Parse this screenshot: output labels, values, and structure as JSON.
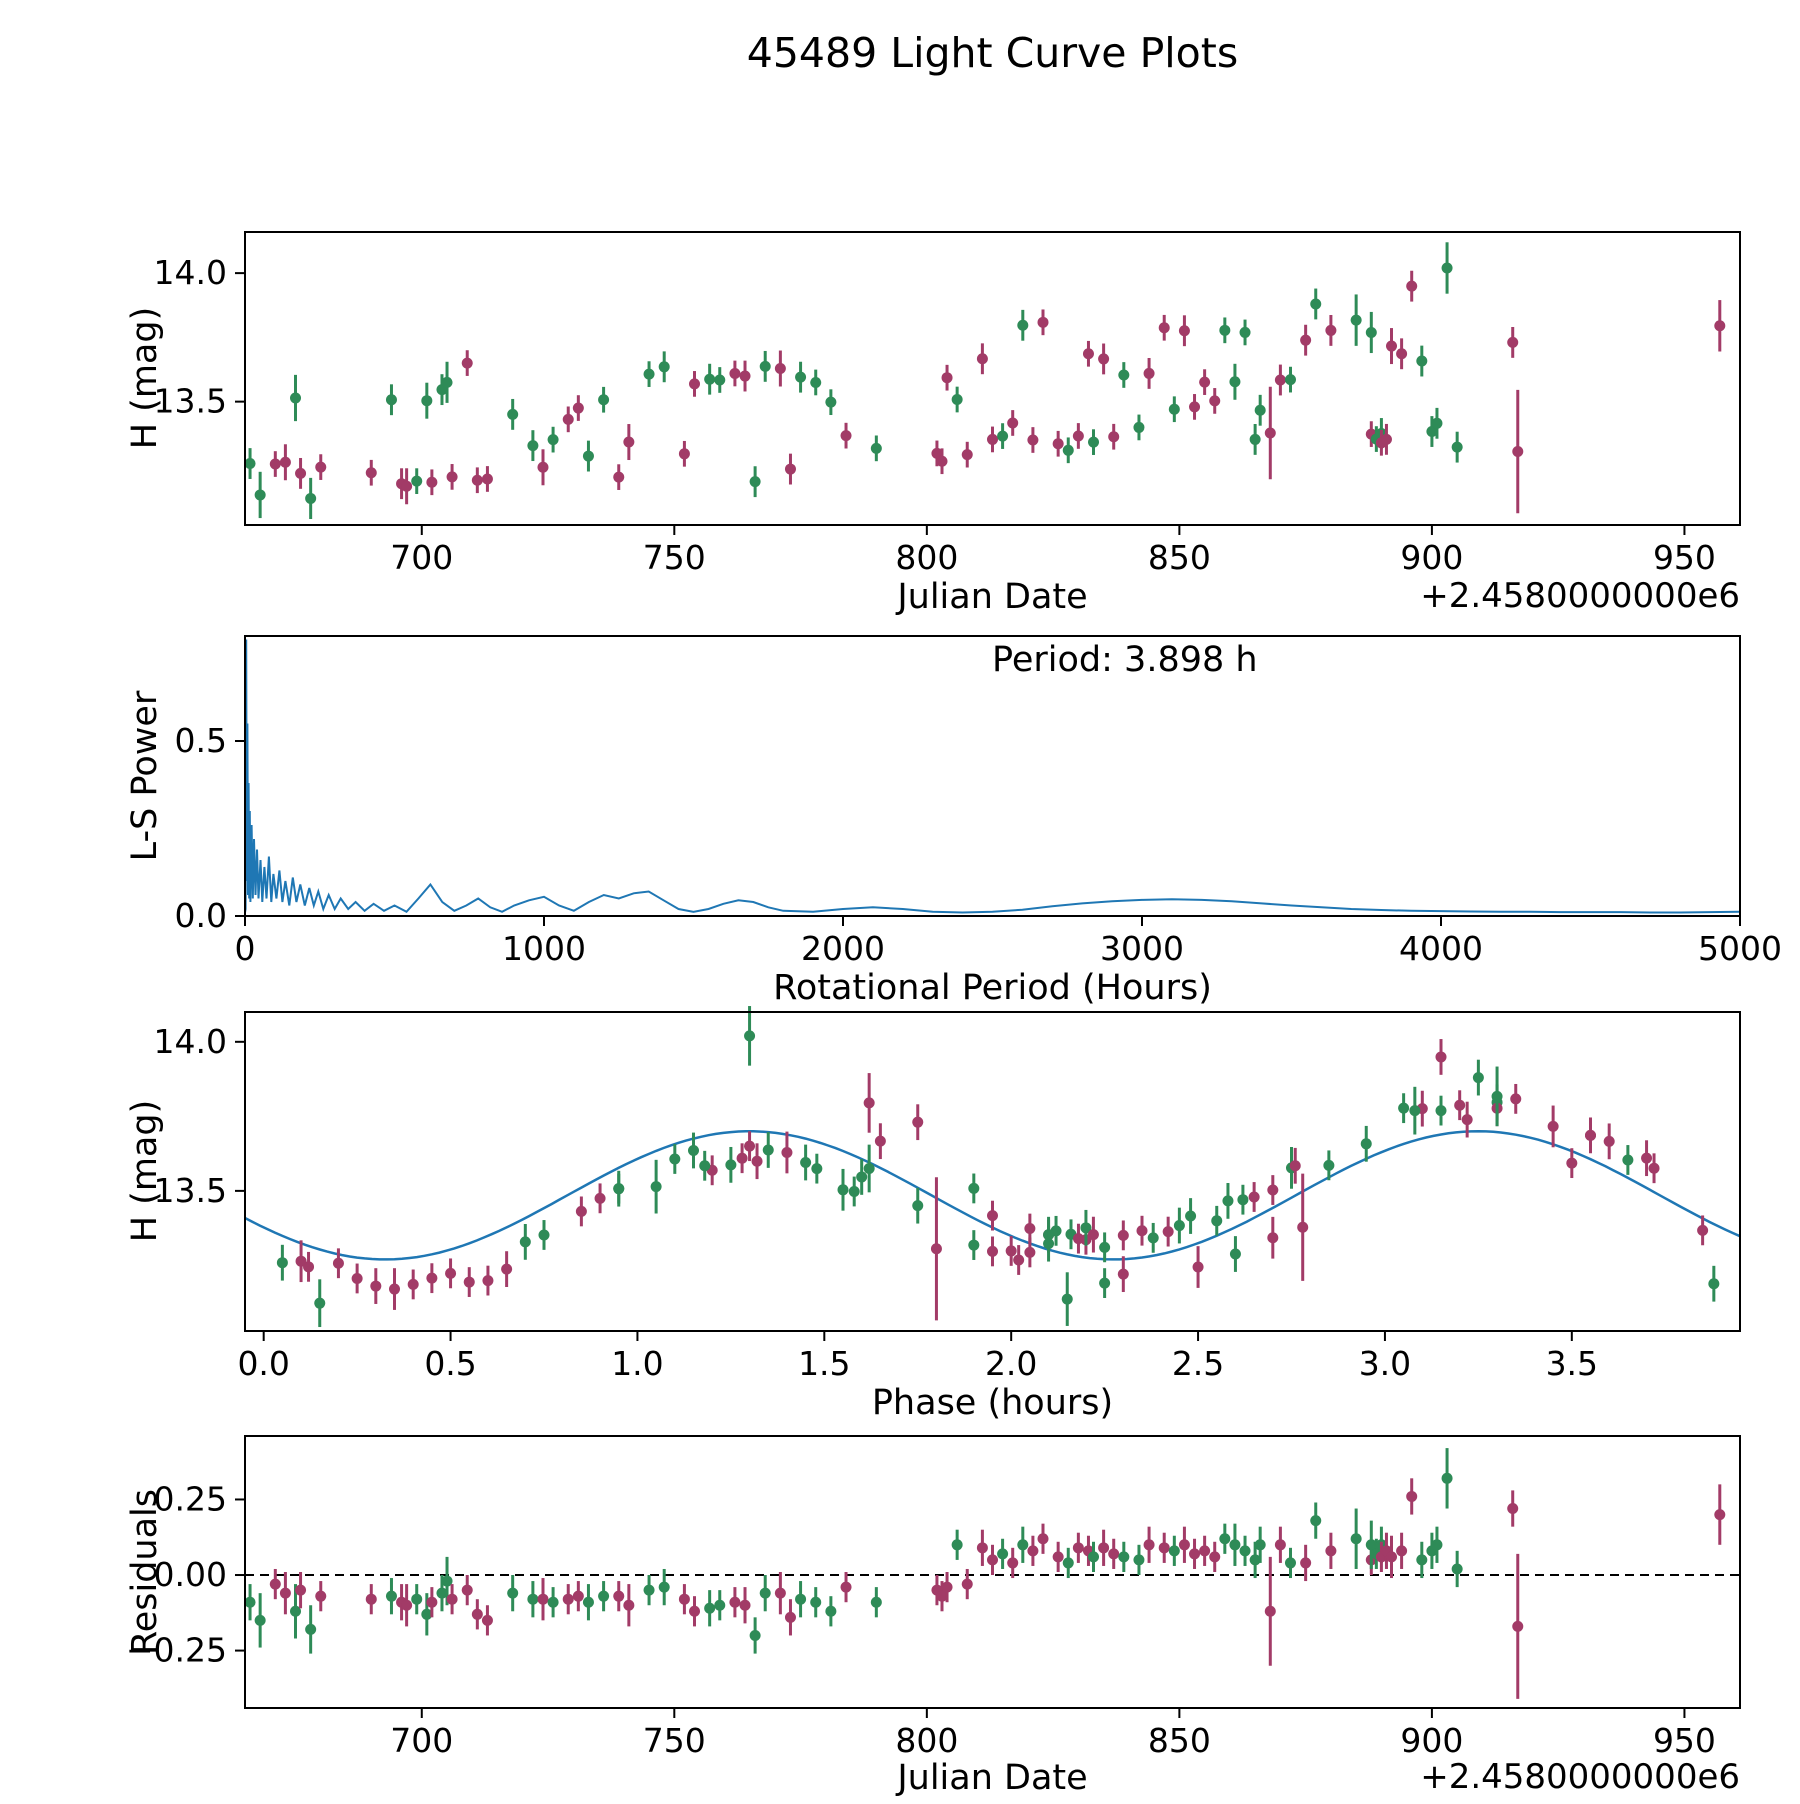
{
  "title": "45489 Light Curve Plots",
  "colors": {
    "green_series": "#2e8b57",
    "maroon_series": "#a23b67",
    "fit_line": "#1f77b4",
    "axis": "#000000",
    "background": "#ffffff"
  },
  "fit": {
    "period_hours": 3.898,
    "sine_period_hours": 1.949,
    "mean_mag": 13.485,
    "amplitude_mag": 0.215,
    "phase_of_minimum_hours": 0.325,
    "label": "Period: 3.898 h"
  },
  "observations_columns": [
    "jd_minus_2458000",
    "phase_hours",
    "residual_mag",
    "error_mag",
    "series"
  ],
  "observations": [
    [
      666,
      0.05,
      -0.09,
      0.06,
      "g"
    ],
    [
      668,
      2.15,
      -0.15,
      0.09,
      "g"
    ],
    [
      671,
      0.2,
      -0.03,
      0.05,
      "m"
    ],
    [
      673,
      0.1,
      -0.06,
      0.07,
      "m"
    ],
    [
      675,
      1.05,
      -0.12,
      0.09,
      "g"
    ],
    [
      676,
      2.3,
      -0.05,
      0.06,
      "m"
    ],
    [
      678,
      0.15,
      -0.18,
      0.08,
      "g"
    ],
    [
      680,
      0.12,
      -0.07,
      0.05,
      "m"
    ],
    [
      690,
      0.5,
      -0.08,
      0.05,
      "m"
    ],
    [
      694,
      0.95,
      -0.07,
      0.06,
      "g"
    ],
    [
      696,
      0.3,
      -0.09,
      0.06,
      "m"
    ],
    [
      697,
      0.35,
      -0.1,
      0.07,
      "m"
    ],
    [
      699,
      2.25,
      -0.08,
      0.05,
      "g"
    ],
    [
      701,
      1.55,
      -0.13,
      0.07,
      "g"
    ],
    [
      702,
      0.4,
      -0.09,
      0.05,
      "m"
    ],
    [
      704,
      1.6,
      -0.06,
      0.06,
      "g"
    ],
    [
      705,
      1.62,
      -0.02,
      0.08,
      "g"
    ],
    [
      706,
      0.45,
      -0.08,
      0.05,
      "m"
    ],
    [
      709,
      1.3,
      -0.05,
      0.05,
      "m"
    ],
    [
      711,
      0.55,
      -0.13,
      0.05,
      "m"
    ],
    [
      713,
      0.6,
      -0.15,
      0.05,
      "m"
    ],
    [
      718,
      1.75,
      -0.06,
      0.06,
      "g"
    ],
    [
      722,
      0.7,
      -0.08,
      0.06,
      "g"
    ],
    [
      724,
      2.5,
      -0.08,
      0.07,
      "m"
    ],
    [
      726,
      0.75,
      -0.09,
      0.05,
      "g"
    ],
    [
      729,
      0.85,
      -0.08,
      0.05,
      "m"
    ],
    [
      731,
      0.9,
      -0.07,
      0.05,
      "m"
    ],
    [
      733,
      2.6,
      -0.09,
      0.06,
      "g"
    ],
    [
      736,
      0.95,
      -0.07,
      0.05,
      "g"
    ],
    [
      739,
      0.25,
      -0.07,
      0.05,
      "m"
    ],
    [
      741,
      2.7,
      -0.1,
      0.07,
      "m"
    ],
    [
      745,
      1.1,
      -0.05,
      0.05,
      "g"
    ],
    [
      748,
      1.15,
      -0.04,
      0.06,
      "g"
    ],
    [
      752,
      1.95,
      -0.08,
      0.05,
      "m"
    ],
    [
      754,
      1.2,
      -0.12,
      0.05,
      "m"
    ],
    [
      757,
      1.25,
      -0.11,
      0.06,
      "g"
    ],
    [
      759,
      1.18,
      -0.1,
      0.05,
      "g"
    ],
    [
      762,
      1.28,
      -0.09,
      0.05,
      "m"
    ],
    [
      764,
      1.32,
      -0.1,
      0.06,
      "m"
    ],
    [
      766,
      3.88,
      -0.2,
      0.06,
      "g"
    ],
    [
      768,
      1.35,
      -0.06,
      0.06,
      "g"
    ],
    [
      771,
      1.4,
      -0.06,
      0.07,
      "m"
    ],
    [
      773,
      0.65,
      -0.14,
      0.06,
      "m"
    ],
    [
      775,
      1.45,
      -0.08,
      0.06,
      "g"
    ],
    [
      778,
      1.48,
      -0.09,
      0.05,
      "g"
    ],
    [
      781,
      1.58,
      -0.12,
      0.05,
      "g"
    ],
    [
      784,
      3.85,
      -0.04,
      0.05,
      "m"
    ],
    [
      790,
      1.9,
      -0.09,
      0.05,
      "g"
    ],
    [
      802,
      2.0,
      -0.05,
      0.05,
      "m"
    ],
    [
      803,
      2.02,
      -0.07,
      0.05,
      "m"
    ],
    [
      804,
      3.5,
      -0.04,
      0.05,
      "m"
    ],
    [
      806,
      1.9,
      0.1,
      0.05,
      "g"
    ],
    [
      808,
      2.05,
      -0.03,
      0.05,
      "m"
    ],
    [
      811,
      1.65,
      0.09,
      0.06,
      "m"
    ],
    [
      813,
      2.1,
      0.05,
      0.05,
      "m"
    ],
    [
      815,
      2.12,
      0.07,
      0.05,
      "g"
    ],
    [
      817,
      1.95,
      0.04,
      0.05,
      "m"
    ],
    [
      819,
      3.3,
      0.1,
      0.06,
      "g"
    ],
    [
      821,
      2.3,
      0.08,
      0.05,
      "m"
    ],
    [
      823,
      3.35,
      0.12,
      0.05,
      "m"
    ],
    [
      826,
      2.2,
      0.06,
      0.05,
      "m"
    ],
    [
      828,
      2.25,
      0.04,
      0.05,
      "g"
    ],
    [
      830,
      2.35,
      0.09,
      0.05,
      "m"
    ],
    [
      832,
      3.55,
      0.08,
      0.05,
      "m"
    ],
    [
      833,
      2.38,
      0.06,
      0.05,
      "g"
    ],
    [
      835,
      3.6,
      0.09,
      0.06,
      "m"
    ],
    [
      837,
      2.42,
      0.07,
      0.05,
      "m"
    ],
    [
      839,
      3.65,
      0.06,
      0.05,
      "g"
    ],
    [
      842,
      2.55,
      0.05,
      0.05,
      "g"
    ],
    [
      844,
      3.7,
      0.1,
      0.06,
      "m"
    ],
    [
      847,
      3.2,
      0.09,
      0.05,
      "m"
    ],
    [
      849,
      2.62,
      0.08,
      0.05,
      "g"
    ],
    [
      851,
      3.1,
      0.1,
      0.06,
      "m"
    ],
    [
      853,
      2.65,
      0.07,
      0.05,
      "m"
    ],
    [
      855,
      3.72,
      0.08,
      0.05,
      "m"
    ],
    [
      857,
      2.7,
      0.06,
      0.05,
      "m"
    ],
    [
      859,
      3.05,
      0.12,
      0.05,
      "g"
    ],
    [
      861,
      2.75,
      0.1,
      0.07,
      "g"
    ],
    [
      863,
      3.15,
      0.08,
      0.05,
      "g"
    ],
    [
      865,
      2.1,
      0.05,
      0.06,
      "g"
    ],
    [
      866,
      2.58,
      0.1,
      0.06,
      "g"
    ],
    [
      868,
      2.78,
      -0.12,
      0.18,
      "m"
    ],
    [
      870,
      2.76,
      0.1,
      0.06,
      "m"
    ],
    [
      872,
      2.85,
      0.04,
      0.05,
      "g"
    ],
    [
      875,
      3.22,
      0.04,
      0.06,
      "m"
    ],
    [
      877,
      3.25,
      0.18,
      0.06,
      "g"
    ],
    [
      880,
      3.3,
      0.08,
      0.06,
      "m"
    ],
    [
      885,
      3.3,
      0.12,
      0.1,
      "g"
    ],
    [
      888,
      2.05,
      0.05,
      0.05,
      "m"
    ],
    [
      888,
      3.08,
      0.1,
      0.08,
      "g"
    ],
    [
      889,
      2.16,
      0.07,
      0.05,
      "g"
    ],
    [
      890,
      2.2,
      0.1,
      0.06,
      "g"
    ],
    [
      890,
      2.18,
      0.06,
      0.05,
      "m"
    ],
    [
      891,
      2.22,
      0.08,
      0.06,
      "m"
    ],
    [
      892,
      3.45,
      0.06,
      0.07,
      "m"
    ],
    [
      894,
      3.55,
      0.08,
      0.06,
      "m"
    ],
    [
      896,
      3.15,
      0.26,
      0.06,
      "m"
    ],
    [
      898,
      2.95,
      0.05,
      0.06,
      "g"
    ],
    [
      900,
      2.45,
      0.08,
      0.06,
      "g"
    ],
    [
      901,
      2.48,
      0.1,
      0.06,
      "g"
    ],
    [
      903,
      1.3,
      0.32,
      0.1,
      "g"
    ],
    [
      905,
      2.1,
      0.02,
      0.06,
      "g"
    ],
    [
      916,
      1.75,
      0.22,
      0.06,
      "m"
    ],
    [
      917,
      1.8,
      -0.17,
      0.24,
      "m"
    ],
    [
      957,
      1.62,
      0.2,
      0.1,
      "m"
    ]
  ],
  "chart_data": [
    {
      "name": "light-curve-vs-julian-date",
      "type": "scatter",
      "xlabel": "Julian Date",
      "x_offset_label": "+2.4580000000e6",
      "ylabel": "H (mag)",
      "xlim": [
        665,
        961
      ],
      "ylim": [
        13.02,
        14.16
      ],
      "xticks": [
        {
          "v": 700,
          "label": "700"
        },
        {
          "v": 750,
          "label": "750"
        },
        {
          "v": 800,
          "label": "800"
        },
        {
          "v": 850,
          "label": "850"
        },
        {
          "v": 900,
          "label": "900"
        },
        {
          "v": 950,
          "label": "950"
        }
      ],
      "yticks": [
        {
          "v": 13.5,
          "label": "13.5"
        },
        {
          "v": 14.0,
          "label": "14.0"
        }
      ],
      "points_source": "observations",
      "x_field": "jd",
      "y_field": "mag",
      "error_field": "err"
    },
    {
      "name": "lomb-scargle-periodogram",
      "type": "line",
      "xlabel": "Rotational Period (Hours)",
      "ylabel": "L-S Power",
      "annotation": "Period: 3.898 h",
      "xlim": [
        0,
        5000
      ],
      "ylim": [
        0,
        0.8
      ],
      "xticks": [
        {
          "v": 0,
          "label": "0"
        },
        {
          "v": 1000,
          "label": "1000"
        },
        {
          "v": 2000,
          "label": "2000"
        },
        {
          "v": 3000,
          "label": "3000"
        },
        {
          "v": 4000,
          "label": "4000"
        },
        {
          "v": 5000,
          "label": "5000"
        }
      ],
      "yticks": [
        {
          "v": 0,
          "label": "0.0"
        },
        {
          "v": 0.5,
          "label": "0.5"
        }
      ],
      "points": [
        [
          0,
          0.01
        ],
        [
          2,
          0.02
        ],
        [
          4,
          0.79
        ],
        [
          6,
          0.1
        ],
        [
          8,
          0.55
        ],
        [
          10,
          0.06
        ],
        [
          12,
          0.38
        ],
        [
          14,
          0.05
        ],
        [
          16,
          0.3
        ],
        [
          18,
          0.04
        ],
        [
          22,
          0.26
        ],
        [
          26,
          0.05
        ],
        [
          30,
          0.22
        ],
        [
          35,
          0.06
        ],
        [
          40,
          0.19
        ],
        [
          45,
          0.05
        ],
        [
          52,
          0.16
        ],
        [
          58,
          0.04
        ],
        [
          65,
          0.14
        ],
        [
          72,
          0.05
        ],
        [
          80,
          0.17
        ],
        [
          88,
          0.04
        ],
        [
          95,
          0.12
        ],
        [
          105,
          0.05
        ],
        [
          115,
          0.13
        ],
        [
          125,
          0.04
        ],
        [
          135,
          0.1
        ],
        [
          148,
          0.03
        ],
        [
          160,
          0.11
        ],
        [
          172,
          0.04
        ],
        [
          185,
          0.09
        ],
        [
          200,
          0.03
        ],
        [
          215,
          0.08
        ],
        [
          230,
          0.03
        ],
        [
          245,
          0.07
        ],
        [
          262,
          0.02
        ],
        [
          280,
          0.06
        ],
        [
          300,
          0.02
        ],
        [
          320,
          0.05
        ],
        [
          345,
          0.02
        ],
        [
          370,
          0.04
        ],
        [
          400,
          0.015
        ],
        [
          430,
          0.035
        ],
        [
          465,
          0.015
        ],
        [
          500,
          0.03
        ],
        [
          540,
          0.012
        ],
        [
          580,
          0.05
        ],
        [
          620,
          0.09
        ],
        [
          660,
          0.04
        ],
        [
          700,
          0.015
        ],
        [
          740,
          0.03
        ],
        [
          780,
          0.05
        ],
        [
          820,
          0.025
        ],
        [
          860,
          0.012
        ],
        [
          900,
          0.03
        ],
        [
          950,
          0.045
        ],
        [
          1000,
          0.055
        ],
        [
          1050,
          0.03
        ],
        [
          1100,
          0.015
        ],
        [
          1150,
          0.04
        ],
        [
          1200,
          0.06
        ],
        [
          1250,
          0.05
        ],
        [
          1300,
          0.065
        ],
        [
          1350,
          0.07
        ],
        [
          1400,
          0.045
        ],
        [
          1450,
          0.02
        ],
        [
          1500,
          0.012
        ],
        [
          1550,
          0.02
        ],
        [
          1600,
          0.035
        ],
        [
          1650,
          0.045
        ],
        [
          1700,
          0.04
        ],
        [
          1750,
          0.025
        ],
        [
          1800,
          0.015
        ],
        [
          1900,
          0.012
        ],
        [
          2000,
          0.02
        ],
        [
          2100,
          0.025
        ],
        [
          2200,
          0.02
        ],
        [
          2300,
          0.012
        ],
        [
          2400,
          0.01
        ],
        [
          2500,
          0.012
        ],
        [
          2600,
          0.018
        ],
        [
          2700,
          0.028
        ],
        [
          2800,
          0.036
        ],
        [
          2900,
          0.042
        ],
        [
          3000,
          0.046
        ],
        [
          3100,
          0.048
        ],
        [
          3200,
          0.046
        ],
        [
          3300,
          0.042
        ],
        [
          3400,
          0.036
        ],
        [
          3500,
          0.03
        ],
        [
          3600,
          0.025
        ],
        [
          3700,
          0.02
        ],
        [
          3800,
          0.017
        ],
        [
          3900,
          0.015
        ],
        [
          4000,
          0.014
        ],
        [
          4100,
          0.013
        ],
        [
          4200,
          0.012
        ],
        [
          4300,
          0.012
        ],
        [
          4400,
          0.011
        ],
        [
          4500,
          0.011
        ],
        [
          4600,
          0.011
        ],
        [
          4700,
          0.01
        ],
        [
          4800,
          0.01
        ],
        [
          4900,
          0.011
        ],
        [
          5000,
          0.012
        ]
      ]
    },
    {
      "name": "phase-folded-light-curve",
      "type": "scatter+line",
      "xlabel": "Phase (hours)",
      "ylabel": "H (mag)",
      "xlim": [
        -0.05,
        3.95
      ],
      "ylim": [
        13.03,
        14.1
      ],
      "xticks": [
        {
          "v": 0,
          "label": "0.0"
        },
        {
          "v": 0.5,
          "label": "0.5"
        },
        {
          "v": 1,
          "label": "1.0"
        },
        {
          "v": 1.5,
          "label": "1.5"
        },
        {
          "v": 2,
          "label": "2.0"
        },
        {
          "v": 2.5,
          "label": "2.5"
        },
        {
          "v": 3,
          "label": "3.0"
        },
        {
          "v": 3.5,
          "label": "3.5"
        }
      ],
      "yticks": [
        {
          "v": 13.5,
          "label": "13.5"
        },
        {
          "v": 14.0,
          "label": "14.0"
        }
      ],
      "points_source": "observations",
      "x_field": "phase",
      "y_field": "mag",
      "error_field": "err",
      "fit_curve": "sinusoid"
    },
    {
      "name": "residuals-vs-julian-date",
      "type": "scatter",
      "xlabel": "Julian Date",
      "x_offset_label": "+2.4580000000e6",
      "ylabel": "Residuals",
      "xlim": [
        665,
        961
      ],
      "ylim": [
        -0.44,
        0.46
      ],
      "xticks": [
        {
          "v": 700,
          "label": "700"
        },
        {
          "v": 750,
          "label": "750"
        },
        {
          "v": 800,
          "label": "800"
        },
        {
          "v": 850,
          "label": "850"
        },
        {
          "v": 900,
          "label": "900"
        },
        {
          "v": 950,
          "label": "950"
        }
      ],
      "yticks": [
        {
          "v": -0.25,
          "label": "−0.25"
        },
        {
          "v": 0,
          "label": "0.00"
        },
        {
          "v": 0.25,
          "label": "0.25"
        }
      ],
      "points_source": "observations",
      "x_field": "jd",
      "y_field": "residual",
      "error_field": "err",
      "zero_line": true
    }
  ]
}
